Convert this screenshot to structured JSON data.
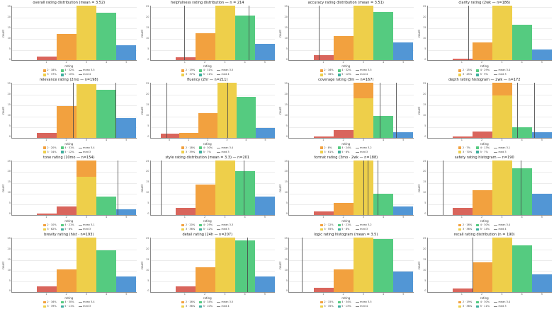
{
  "figure": {
    "rows": 4,
    "cols": 4
  },
  "colors": {
    "r": "#d9655c",
    "o": "#f2a13f",
    "y": "#eecf4a",
    "g": "#55cb80",
    "b": "#5296d5",
    "teal": "#3fae9e",
    "vline": "#4a4a4a",
    "grid": "#ececec",
    "axis": "#8a8a8a"
  },
  "chart_data": {
    "type": "bar",
    "grid": true,
    "legend_position": "bottom",
    "shared": {
      "ylabel": "count",
      "xlabel": "rating",
      "yticks": [
        "25",
        "20",
        "15",
        "10",
        "5",
        "0"
      ],
      "xticks": [
        "1",
        "2",
        "3",
        "4",
        "5"
      ],
      "legend_swatch_colors": [
        "#f2a13f",
        "#eecf4a",
        "#55cb80",
        "#3fae9e"
      ]
    },
    "charts": [
      {
        "title": "overall rating distribution (mean = 3.52)",
        "bars": [
          [
            "r",
            7
          ],
          [
            "o",
            48
          ],
          [
            "y",
            100
          ],
          [
            "g",
            87
          ],
          [
            "b",
            28
          ]
        ],
        "vlines": [],
        "legend": [
          "2 · 18%",
          "3 · 37%",
          "4 · 32%",
          "5 · 10%",
          "mean 3.5",
          "med 4"
        ]
      },
      {
        "title": "helpfulness rating distribution — n = 214",
        "bars": [
          [
            "r",
            6
          ],
          [
            "o",
            50
          ],
          [
            "y",
            100
          ],
          [
            "g",
            82
          ],
          [
            "b",
            30
          ]
        ],
        "vlines": [
          27,
          79
        ],
        "legend": [
          "2 · 19%",
          "3 · 37%",
          "4 · 31%",
          "5 · 11%",
          "mean 3.5",
          "med 4"
        ]
      },
      {
        "title": "accuracy rating distribution (mean = 3.51)",
        "bars": [
          [
            "r",
            10
          ],
          [
            "o",
            45
          ],
          [
            "y",
            100
          ],
          [
            "g",
            88
          ],
          [
            "b",
            33
          ]
        ],
        "vlines": [
          24
        ],
        "legend": [
          "2 · 16%",
          "3 · 36%",
          "4 · 32%",
          "5 · 12%",
          "mean 3.5",
          "med 4"
        ]
      },
      {
        "title": "clarity rating (2wk — n=186)",
        "bars": [
          [
            "r",
            3
          ],
          [
            "o",
            33
          ],
          [
            "y",
            100
          ],
          [
            "g",
            65
          ],
          [
            "b",
            20
          ]
        ],
        "vlines": [
          33
        ],
        "legend": [
          "2 · 15%",
          "3 · 45%",
          "4 · 29%",
          "5 · 9%",
          "mean 3.4",
          "med 3"
        ]
      },
      {
        "title": "relevance rating (2mo — n=198)",
        "bars": [
          [
            "r",
            8
          ],
          [
            "o",
            57
          ],
          [
            "y",
            98
          ],
          [
            "g",
            88
          ],
          [
            "b",
            35
          ]
        ],
        "vlines": [
          49,
          83
        ],
        "legend": [
          "2 · 20%",
          "3 · 34%",
          "4 · 31%",
          "5 · 12%",
          "mean 3.4",
          "med 3"
        ]
      },
      {
        "title": "fluency (2hr — n=211)",
        "bars": [
          [
            "r",
            7
          ],
          [
            "o",
            8
          ],
          [
            "o",
            45
          ],
          [
            "y",
            100
          ],
          [
            "g",
            75
          ],
          [
            "b",
            18
          ]
        ],
        "gap": 8,
        "xticks": [
          "0",
          "1",
          "2",
          "3",
          "4",
          "5"
        ],
        "vlines": [
          13,
          62
        ],
        "legend": [
          "2 · 18%",
          "3 · 39%",
          "4 · 30%",
          "5 · 7%",
          "mean 3.4",
          "med 3"
        ]
      },
      {
        "title": "coverage rating (3m — n=167)",
        "bars": [
          [
            "r",
            2
          ],
          [
            "r",
            13
          ],
          [
            "y",
            72,
            28
          ],
          [
            "g",
            40
          ],
          [
            "b",
            10
          ]
        ],
        "vlines": [
          73,
          86
        ],
        "legend": [
          "2 · 8%",
          "3 · 61%",
          "4 · 24%",
          "5 · 6%",
          "mean 3.2",
          "med 3"
        ]
      },
      {
        "title": "depth rating histogram — 2wk — n=172",
        "bars": [
          [
            "r",
            2
          ],
          [
            "r",
            11
          ],
          [
            "y",
            77,
            23
          ],
          [
            "g",
            19
          ],
          [
            "b",
            10
          ]
        ],
        "vlines": [
          72,
          86
        ],
        "legend": [
          "2 · 7%",
          "3 · 70%",
          "4 · 13%",
          "5 · 7%",
          "mean 3.1",
          "med 3"
        ]
      },
      {
        "title": "tone rating (10mo — n=154)",
        "bars": [
          [
            "r",
            2
          ],
          [
            "r",
            15
          ],
          [
            "y",
            70,
            30
          ],
          [
            "g",
            33
          ],
          [
            "b",
            10
          ]
        ],
        "vlines": [
          85
        ],
        "legend": [
          "2 · 10%",
          "3 · 62%",
          "4 · 21%",
          "5 · 6%",
          "mean 3.1",
          "med 3"
        ]
      },
      {
        "title": "style rating distribution (mean = 3.3) — n=201",
        "bars": [
          [
            "r",
            13
          ],
          [
            "o",
            55
          ],
          [
            "y",
            100
          ],
          [
            "g",
            80
          ],
          [
            "b",
            33
          ]
        ],
        "vlines": [
          8,
          75
        ],
        "legend": [
          "2 · 20%",
          "3 · 36%",
          "4 · 29%",
          "5 · 12%",
          "mean 3.3",
          "med 3"
        ]
      },
      {
        "title": "format rating (3mo · 2wk — n=188)",
        "bars": [
          [
            "r",
            6
          ],
          [
            "o",
            22
          ],
          [
            "y",
            100
          ],
          [
            "g",
            38
          ],
          [
            "b",
            15
          ]
        ],
        "vlines": [
          60,
          63,
          71
        ],
        "legend": [
          "2 · 12%",
          "3 · 55%",
          "4 · 21%",
          "5 · 8%",
          "mean 3.2",
          "med 3"
        ]
      },
      {
        "title": "safety rating histogram — n=190",
        "bars": [
          [
            "r",
            12
          ],
          [
            "o",
            45
          ],
          [
            "y",
            100
          ],
          [
            "g",
            85
          ],
          [
            "b",
            38
          ]
        ],
        "vlines": [
          12,
          75
        ],
        "legend": [
          "2 · 16%",
          "3 · 36%",
          "4 · 30%",
          "5 · 14%",
          "mean 3.4",
          "med 4"
        ]
      },
      {
        "title": "brevity rating (hist · n=193)",
        "bars": [
          [
            "r",
            10
          ],
          [
            "o",
            42
          ],
          [
            "y",
            100
          ],
          [
            "g",
            77
          ],
          [
            "b",
            28
          ]
        ],
        "vlines": [],
        "legend": [
          "2 · 16%",
          "3 · 39%",
          "4 · 30%",
          "5 · 11%",
          "mean 3.4",
          "med 3"
        ]
      },
      {
        "title": "detail rating (24h — n=207)",
        "bars": [
          [
            "r",
            10
          ],
          [
            "o",
            45
          ],
          [
            "y",
            100
          ],
          [
            "g",
            95
          ],
          [
            "b",
            28
          ]
        ],
        "vlines": [
          78
        ],
        "legend": [
          "2 · 16%",
          "3 · 36%",
          "4 · 34%",
          "5 · 10%",
          "mean 3.5",
          "med 4"
        ]
      },
      {
        "title": "logic rating histogram (mean = 3.5)",
        "bars": [
          [
            "r",
            8
          ],
          [
            "o",
            42
          ],
          [
            "y",
            100
          ],
          [
            "g",
            97
          ],
          [
            "b",
            38
          ]
        ],
        "vlines": [
          10
        ],
        "legend": [
          "2 · 15%",
          "3 · 35%",
          "4 · 34%",
          "5 · 13%",
          "mean 3.5",
          "med 4"
        ]
      },
      {
        "title": "recall rating distribution (n = 190)",
        "bars": [
          [
            "r",
            7
          ],
          [
            "o",
            55
          ],
          [
            "y",
            100
          ],
          [
            "g",
            85
          ],
          [
            "b",
            32
          ]
        ],
        "vlines": [
          36
        ],
        "legend": [
          "2 · 19%",
          "3 · 36%",
          "4 · 30%",
          "5 · 11%",
          "mean 3.4",
          "med 3"
        ]
      }
    ]
  }
}
